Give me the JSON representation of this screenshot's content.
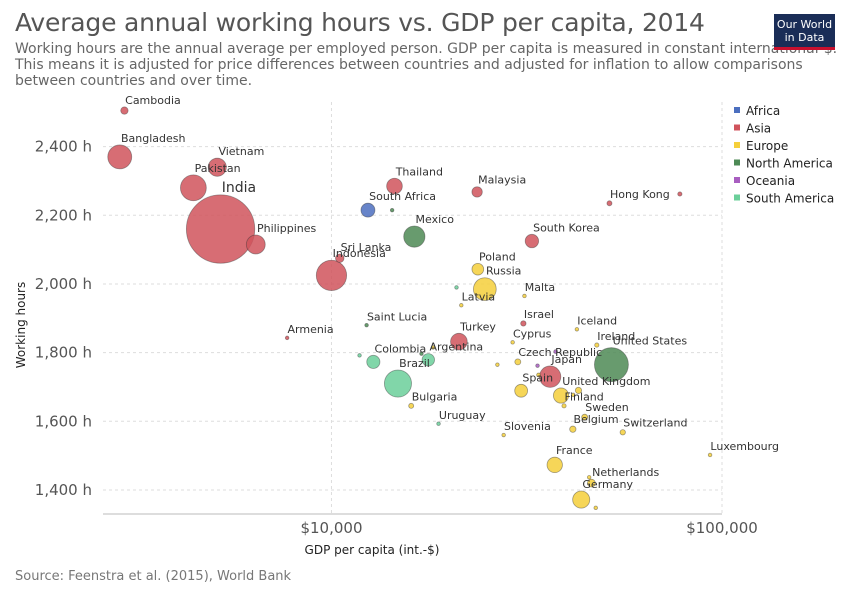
{
  "title": "Average annual working hours vs. GDP per capita, 2014",
  "subtitle": "Working hours are the annual average per employed person. GDP per capita is measured in constant international-$. This means it is adjusted for price differences between countries and adjusted for inflation to allow comparisons between countries and over time.",
  "logo": {
    "line1": "Our World",
    "line2": "in Data",
    "colors": {
      "background": "#1a2d57",
      "accent": "#c8102e"
    }
  },
  "source": "Source: Feenstra et al. (2015), World Bank",
  "colors": {
    "Africa": "#4c6fbf",
    "Asia": "#d0535c",
    "Europe": "#f5cf3b",
    "North America": "#4d8a55",
    "Oceania": "#a85ec0",
    "South America": "#6bcf9a"
  },
  "chart_data": {
    "type": "scatter",
    "title": "Average annual working hours vs. GDP per capita, 2014",
    "xlabel": "GDP per capita (int.-$)",
    "ylabel": "Working hours",
    "x_scale": "log",
    "xlim": [
      2600,
      100000
    ],
    "ylim": [
      1330,
      2530
    ],
    "x_ticks": [
      {
        "value": 10000,
        "label": "$10,000"
      },
      {
        "value": 100000,
        "label": "$100,000"
      }
    ],
    "y_ticks": [
      {
        "value": 1400,
        "label": "1,400 h"
      },
      {
        "value": 1600,
        "label": "1,600 h"
      },
      {
        "value": 1800,
        "label": "1,800 h"
      },
      {
        "value": 2000,
        "label": "2,000 h"
      },
      {
        "value": 2200,
        "label": "2,200 h"
      },
      {
        "value": 2400,
        "label": "2,400 h"
      }
    ],
    "grid": true,
    "legend": {
      "placement": "right",
      "entries": [
        "Africa",
        "Asia",
        "Europe",
        "North America",
        "Oceania",
        "South America"
      ]
    },
    "points": [
      {
        "label": "Cambodia",
        "x": 2950,
        "y": 2505,
        "region": "Asia",
        "pop": 15
      },
      {
        "label": "Bangladesh",
        "x": 2870,
        "y": 2370,
        "region": "Asia",
        "pop": 159
      },
      {
        "label": "Vietnam",
        "x": 5100,
        "y": 2340,
        "region": "Asia",
        "pop": 91
      },
      {
        "label": "Pakistan",
        "x": 4430,
        "y": 2280,
        "region": "Asia",
        "pop": 185
      },
      {
        "label": "India",
        "x": 5200,
        "y": 2160,
        "region": "Asia",
        "pop": 1295
      },
      {
        "label": "Philippines",
        "x": 6400,
        "y": 2115,
        "region": "Asia",
        "pop": 99
      },
      {
        "label": "Thailand",
        "x": 14500,
        "y": 2285,
        "region": "Asia",
        "pop": 68
      },
      {
        "label": "South Africa",
        "x": 12400,
        "y": 2215,
        "region": "Africa",
        "pop": 54
      },
      {
        "label": "",
        "x": 14300,
        "y": 2215,
        "region": "North America",
        "pop": 1
      },
      {
        "label": "Mexico",
        "x": 16300,
        "y": 2138,
        "region": "North America",
        "pop": 125
      },
      {
        "label": "Malaysia",
        "x": 23600,
        "y": 2268,
        "region": "Asia",
        "pop": 30
      },
      {
        "label": "Hong Kong",
        "x": 51500,
        "y": 2235,
        "region": "Asia",
        "pop": 7
      },
      {
        "label": "",
        "x": 78000,
        "y": 2262,
        "region": "Asia",
        "pop": 5
      },
      {
        "label": "South Korea",
        "x": 32600,
        "y": 2125,
        "region": "Asia",
        "pop": 50
      },
      {
        "label": "Sri Lanka",
        "x": 10500,
        "y": 2075,
        "region": "Asia",
        "pop": 20
      },
      {
        "label": "Indonesia",
        "x": 10000,
        "y": 2025,
        "region": "Asia",
        "pop": 255
      },
      {
        "label": "Poland",
        "x": 23700,
        "y": 2043,
        "region": "Europe",
        "pop": 38
      },
      {
        "label": "",
        "x": 20900,
        "y": 1990,
        "region": "South America",
        "pop": 1
      },
      {
        "label": "Russia",
        "x": 24700,
        "y": 1985,
        "region": "Europe",
        "pop": 144
      },
      {
        "label": "Malta",
        "x": 31200,
        "y": 1965,
        "region": "Europe",
        "pop": 0.4
      },
      {
        "label": "Latvia",
        "x": 21500,
        "y": 1938,
        "region": "Europe",
        "pop": 2
      },
      {
        "label": "Saint Lucia",
        "x": 12300,
        "y": 1880,
        "region": "North America",
        "pop": 0.2
      },
      {
        "label": "Armenia",
        "x": 7700,
        "y": 1843,
        "region": "Asia",
        "pop": 3
      },
      {
        "label": "Israel",
        "x": 31000,
        "y": 1885,
        "region": "Asia",
        "pop": 8
      },
      {
        "label": "Iceland",
        "x": 42500,
        "y": 1868,
        "region": "Europe",
        "pop": 0.3
      },
      {
        "label": "Turkey",
        "x": 21200,
        "y": 1832,
        "region": "Asia",
        "pop": 77
      },
      {
        "label": "",
        "x": 18200,
        "y": 1815,
        "region": "Europe",
        "pop": 0.5
      },
      {
        "label": "Cyprus",
        "x": 29100,
        "y": 1830,
        "region": "Europe",
        "pop": 1
      },
      {
        "label": "Ireland",
        "x": 47800,
        "y": 1822,
        "region": "Europe",
        "pop": 5
      },
      {
        "label": "",
        "x": 11800,
        "y": 1792,
        "region": "South America",
        "pop": 3
      },
      {
        "label": "Colombia",
        "x": 12800,
        "y": 1773,
        "region": "South America",
        "pop": 48
      },
      {
        "label": "",
        "x": 17000,
        "y": 1797,
        "region": "North America",
        "pop": 0.3
      },
      {
        "label": "Argentina",
        "x": 17700,
        "y": 1779,
        "region": "South America",
        "pop": 43
      },
      {
        "label": "Czech Republic",
        "x": 30000,
        "y": 1773,
        "region": "Europe",
        "pop": 10
      },
      {
        "label": "",
        "x": 26600,
        "y": 1765,
        "region": "Europe",
        "pop": 1
      },
      {
        "label": "",
        "x": 37500,
        "y": 1803,
        "region": "Oceania",
        "pop": 4
      },
      {
        "label": "",
        "x": 33700,
        "y": 1762,
        "region": "Oceania",
        "pop": 2
      },
      {
        "label": "United States",
        "x": 52100,
        "y": 1765,
        "region": "North America",
        "pop": 319
      },
      {
        "label": "Japan",
        "x": 36300,
        "y": 1730,
        "region": "Asia",
        "pop": 127
      },
      {
        "label": "",
        "x": 33900,
        "y": 1735,
        "region": "Europe",
        "pop": 4
      },
      {
        "label": "Brazil",
        "x": 14800,
        "y": 1710,
        "region": "South America",
        "pop": 204
      },
      {
        "label": "Spain",
        "x": 30600,
        "y": 1689,
        "region": "Europe",
        "pop": 46
      },
      {
        "label": "",
        "x": 42900,
        "y": 1690,
        "region": "Europe",
        "pop": 11
      },
      {
        "label": "United Kingdom",
        "x": 38700,
        "y": 1675,
        "region": "Europe",
        "pop": 64
      },
      {
        "label": "",
        "x": 41600,
        "y": 1677,
        "region": "Europe",
        "pop": 1
      },
      {
        "label": "Finland",
        "x": 39400,
        "y": 1645,
        "region": "Europe",
        "pop": 5
      },
      {
        "label": "Bulgaria",
        "x": 16000,
        "y": 1645,
        "region": "Europe",
        "pop": 7
      },
      {
        "label": "Sweden",
        "x": 44500,
        "y": 1612,
        "region": "Europe",
        "pop": 10
      },
      {
        "label": "Uruguay",
        "x": 18800,
        "y": 1593,
        "region": "South America",
        "pop": 3
      },
      {
        "label": "Belgium",
        "x": 41500,
        "y": 1577,
        "region": "Europe",
        "pop": 11
      },
      {
        "label": "Switzerland",
        "x": 55700,
        "y": 1568,
        "region": "Europe",
        "pop": 8
      },
      {
        "label": "Slovenia",
        "x": 27600,
        "y": 1560,
        "region": "Europe",
        "pop": 2
      },
      {
        "label": "Luxembourg",
        "x": 93200,
        "y": 1502,
        "region": "Europe",
        "pop": 0.5
      },
      {
        "label": "France",
        "x": 37300,
        "y": 1473,
        "region": "Europe",
        "pop": 66
      },
      {
        "label": "",
        "x": 45700,
        "y": 1437,
        "region": "Europe",
        "pop": 0.3
      },
      {
        "label": "Netherlands",
        "x": 46300,
        "y": 1420,
        "region": "Europe",
        "pop": 17
      },
      {
        "label": "Germany",
        "x": 43600,
        "y": 1372,
        "region": "Europe",
        "pop": 81
      },
      {
        "label": "",
        "x": 47500,
        "y": 1348,
        "region": "Europe",
        "pop": 0.5
      }
    ]
  }
}
